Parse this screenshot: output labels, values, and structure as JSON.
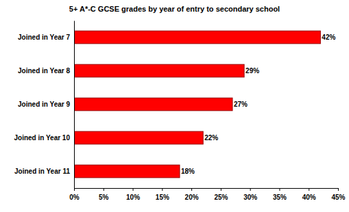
{
  "chart_data": {
    "type": "bar",
    "title": "5+ A*-C GCSE grades by year of entry to secondary school",
    "orientation": "horizontal",
    "categories": [
      "Joined in Year 7",
      "Joined in Year 8",
      "Joined in Year 9",
      "Joined in Year 10",
      "Joined in Year 11"
    ],
    "values": [
      42,
      29,
      27,
      22,
      18
    ],
    "value_labels": [
      "42%",
      "29%",
      "27%",
      "22%",
      "18%"
    ],
    "data_labels": true,
    "color": "#ff0000",
    "xlim": [
      0,
      45
    ],
    "xticks": [
      {
        "value": 0,
        "label": "0%"
      },
      {
        "value": 5,
        "label": "5%"
      },
      {
        "value": 10,
        "label": "10%"
      },
      {
        "value": 15,
        "label": "15%"
      },
      {
        "value": 20,
        "label": "20%"
      },
      {
        "value": 25,
        "label": "25%"
      },
      {
        "value": 30,
        "label": "30%"
      },
      {
        "value": 35,
        "label": "35%"
      },
      {
        "value": 40,
        "label": "40%"
      },
      {
        "value": 45,
        "label": "45%"
      }
    ],
    "grid": false
  }
}
